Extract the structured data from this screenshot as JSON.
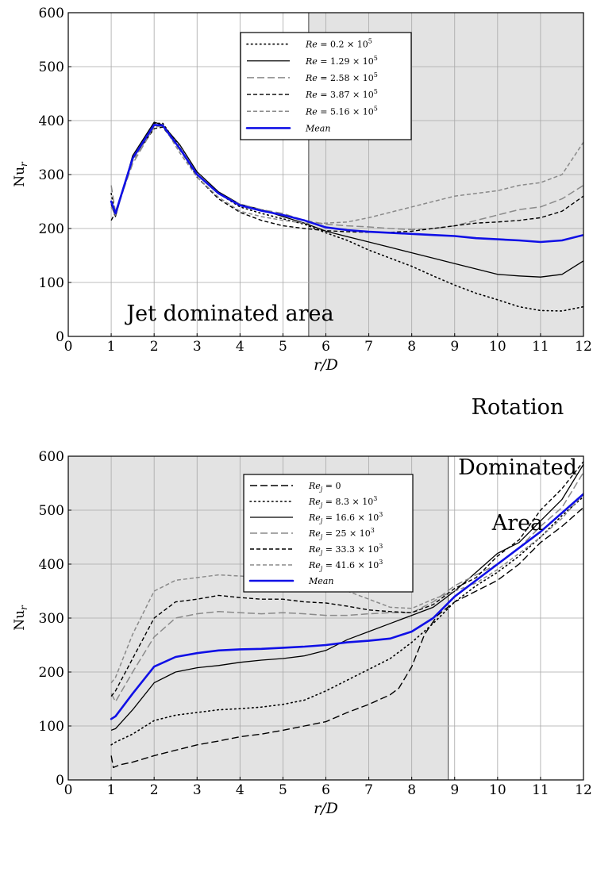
{
  "colors": {
    "shade": "#e3e3e3",
    "grid": "#a8a8a8",
    "mean": "#1010e6",
    "black": "#000000",
    "gray": "#8a8a8a"
  },
  "chart_data": [
    {
      "type": "line",
      "xlabel": "r/D",
      "ylabel": "Nu_r",
      "xlim": [
        0,
        12
      ],
      "ylim": [
        0,
        600
      ],
      "xticks": [
        "0",
        "1",
        "2",
        "3",
        "4",
        "5",
        "6",
        "7",
        "8",
        "9",
        "10",
        "11",
        "12"
      ],
      "yticks": [
        "0",
        "100",
        "200",
        "300",
        "400",
        "500",
        "600"
      ],
      "grid": true,
      "shaded_region": [
        5.6,
        12
      ],
      "annotation": "Jet dominated area",
      "legend_position": "top-center",
      "series": [
        {
          "name": "Re = 0.2 × 10^5",
          "label": "Re = 0.2 × 10",
          "sup": "5",
          "style": "dotted-black",
          "x": [
            1.0,
            1.1,
            1.5,
            2.0,
            2.2,
            2.6,
            3.0,
            3.5,
            4.0,
            4.5,
            5.0,
            5.5,
            6.0,
            6.5,
            7.0,
            7.5,
            8.0,
            8.5,
            9.0,
            9.5,
            10.0,
            10.5,
            11.0,
            11.5,
            12.0
          ],
          "y": [
            265,
            225,
            330,
            395,
            395,
            350,
            300,
            265,
            240,
            228,
            218,
            208,
            192,
            178,
            160,
            145,
            130,
            112,
            95,
            80,
            68,
            55,
            48,
            47,
            55
          ]
        },
        {
          "name": "Re = 1.29 × 10^5",
          "label": "Re = 1.29 × 10",
          "sup": "5",
          "style": "solid-black",
          "x": [
            1.0,
            1.1,
            1.5,
            2.0,
            2.2,
            2.6,
            3.0,
            3.5,
            4.0,
            4.5,
            5.0,
            5.5,
            6.0,
            6.5,
            7.0,
            7.5,
            8.0,
            8.5,
            9.0,
            9.5,
            10.0,
            10.5,
            11.0,
            11.5,
            12.0
          ],
          "y": [
            245,
            222,
            335,
            397,
            392,
            355,
            305,
            268,
            245,
            235,
            222,
            210,
            195,
            185,
            175,
            165,
            155,
            145,
            135,
            125,
            115,
            112,
            110,
            115,
            140
          ]
        },
        {
          "name": "Re = 2.58 × 10^5",
          "label": "Re = 2.58 × 10",
          "sup": "5",
          "style": "longdash-gray",
          "x": [
            1.0,
            1.1,
            1.5,
            2.0,
            2.2,
            2.6,
            3.0,
            3.5,
            4.0,
            4.5,
            5.0,
            5.5,
            6.0,
            6.5,
            7.0,
            7.5,
            8.0,
            8.5,
            9.0,
            9.5,
            10.0,
            10.5,
            11.0,
            11.5,
            12.0
          ],
          "y": [
            280,
            230,
            320,
            388,
            390,
            345,
            300,
            265,
            245,
            235,
            228,
            215,
            208,
            205,
            203,
            200,
            198,
            200,
            205,
            215,
            225,
            235,
            240,
            255,
            280
          ]
        },
        {
          "name": "Re = 3.87 × 10^5",
          "label": "Re = 3.87 × 10",
          "sup": "5",
          "style": "dashed-black",
          "x": [
            1.0,
            1.1,
            1.5,
            2.0,
            2.2,
            2.6,
            3.0,
            3.5,
            4.0,
            4.5,
            5.0,
            5.5,
            6.0,
            6.5,
            7.0,
            7.5,
            8.0,
            8.5,
            9.0,
            9.5,
            10.0,
            10.5,
            11.0,
            11.5,
            12.0
          ],
          "y": [
            215,
            230,
            330,
            385,
            388,
            348,
            295,
            255,
            230,
            215,
            205,
            200,
            196,
            194,
            193,
            193,
            195,
            200,
            205,
            210,
            212,
            215,
            220,
            232,
            260
          ]
        },
        {
          "name": "Re = 5.16 × 10^5",
          "label": "Re = 5.16 × 10",
          "sup": "5",
          "style": "dashed-gray",
          "x": [
            1.0,
            1.1,
            1.5,
            2.0,
            2.2,
            2.6,
            3.0,
            3.5,
            4.0,
            4.5,
            5.0,
            5.5,
            6.0,
            6.5,
            7.0,
            7.5,
            8.0,
            8.5,
            9.0,
            9.5,
            10.0,
            10.5,
            11.0,
            11.5,
            12.0
          ],
          "y": [
            240,
            225,
            325,
            388,
            392,
            340,
            295,
            258,
            232,
            222,
            215,
            210,
            210,
            212,
            220,
            230,
            240,
            250,
            260,
            265,
            270,
            280,
            285,
            300,
            360
          ]
        },
        {
          "name": "Mean",
          "label": "Mean",
          "sup": "",
          "style": "solid-blue",
          "x": [
            1.0,
            1.1,
            1.5,
            2.0,
            2.2,
            2.6,
            3.0,
            3.5,
            4.0,
            4.5,
            5.0,
            5.5,
            6.0,
            6.5,
            7.0,
            7.5,
            8.0,
            8.5,
            9.0,
            9.5,
            10.0,
            10.5,
            11.0,
            11.5,
            12.0
          ],
          "y": [
            250,
            228,
            330,
            392,
            391,
            348,
            300,
            265,
            243,
            233,
            225,
            215,
            202,
            197,
            194,
            192,
            190,
            188,
            186,
            182,
            180,
            178,
            175,
            178,
            188
          ]
        }
      ]
    },
    {
      "type": "line",
      "xlabel": "r/D",
      "ylabel": "Nu_r",
      "xlim": [
        0,
        12
      ],
      "ylim": [
        0,
        600
      ],
      "xticks": [
        "0",
        "1",
        "2",
        "3",
        "4",
        "5",
        "6",
        "7",
        "8",
        "9",
        "10",
        "11",
        "12"
      ],
      "yticks": [
        "0",
        "100",
        "200",
        "300",
        "400",
        "500",
        "600"
      ],
      "grid": true,
      "shaded_region": [
        0,
        8.85
      ],
      "annotation_lines": [
        "Rotation",
        "Dominated",
        "Area"
      ],
      "legend_position": "top-center",
      "series": [
        {
          "name": "Re_j = 0",
          "label": "Re_j = 0",
          "sup": "",
          "style": "longdash-black",
          "x": [
            1.0,
            1.05,
            1.2,
            1.5,
            2.0,
            2.5,
            3.0,
            3.5,
            4.0,
            4.5,
            5.0,
            5.5,
            6.0,
            6.5,
            7.0,
            7.5,
            7.7,
            8.0,
            8.3,
            8.6,
            9.0,
            9.5,
            10.0,
            10.5,
            11.0,
            11.5,
            12.0
          ],
          "y": [
            45,
            23,
            28,
            33,
            45,
            55,
            65,
            72,
            80,
            85,
            92,
            100,
            108,
            125,
            140,
            158,
            170,
            210,
            270,
            305,
            330,
            350,
            370,
            400,
            440,
            470,
            505
          ]
        },
        {
          "name": "Re_j = 8.3 × 10^3",
          "label": "Re_j = 8.3 × 10",
          "sup": "3",
          "style": "dotted-black",
          "x": [
            1.0,
            1.1,
            1.5,
            2.0,
            2.5,
            3.0,
            3.5,
            4.0,
            4.5,
            5.0,
            5.5,
            6.0,
            6.5,
            7.0,
            7.5,
            8.0,
            8.5,
            9.0,
            9.5,
            10.0,
            10.5,
            11.0,
            11.5,
            12.0
          ],
          "y": [
            65,
            70,
            85,
            110,
            120,
            125,
            130,
            132,
            135,
            140,
            148,
            165,
            185,
            205,
            225,
            255,
            290,
            330,
            360,
            385,
            415,
            450,
            490,
            525
          ]
        },
        {
          "name": "Re_j = 16.6 × 10^3",
          "label": "Re_j = 16.6 × 10",
          "sup": "3",
          "style": "solid-black",
          "x": [
            1.0,
            1.1,
            1.5,
            2.0,
            2.5,
            3.0,
            3.5,
            4.0,
            4.5,
            5.0,
            5.5,
            6.0,
            6.5,
            7.0,
            7.5,
            8.0,
            8.5,
            9.0,
            9.5,
            10.0,
            10.5,
            11.0,
            11.5,
            12.0
          ],
          "y": [
            92,
            95,
            130,
            180,
            200,
            208,
            212,
            218,
            222,
            225,
            230,
            240,
            260,
            275,
            290,
            305,
            320,
            350,
            385,
            420,
            440,
            480,
            520,
            585
          ]
        },
        {
          "name": "Re_j = 25 × 10^3",
          "label": "Re_j = 25 × 10",
          "sup": "3",
          "style": "longdash-gray",
          "x": [
            1.0,
            1.1,
            1.5,
            2.0,
            2.5,
            3.0,
            3.5,
            4.0,
            4.5,
            5.0,
            5.5,
            6.0,
            6.5,
            7.0,
            7.5,
            8.0,
            8.5,
            9.0,
            9.5,
            10.0,
            10.5,
            11.0,
            11.5,
            12.0
          ],
          "y": [
            160,
            145,
            200,
            265,
            300,
            308,
            312,
            310,
            308,
            310,
            308,
            305,
            305,
            308,
            310,
            310,
            330,
            360,
            380,
            400,
            430,
            470,
            505,
            570
          ]
        },
        {
          "name": "Re_j = 33.3 × 10^3",
          "label": "Re_j = 33.3 × 10",
          "sup": "3",
          "style": "dashed-black",
          "x": [
            1.0,
            1.1,
            1.5,
            2.0,
            2.5,
            3.0,
            3.5,
            4.0,
            4.5,
            5.0,
            5.5,
            6.0,
            6.5,
            7.0,
            7.5,
            8.0,
            8.5,
            9.0,
            9.5,
            10.0,
            10.5,
            11.0,
            11.5,
            12.0
          ],
          "y": [
            155,
            165,
            225,
            300,
            330,
            335,
            342,
            338,
            335,
            335,
            330,
            328,
            322,
            315,
            312,
            310,
            325,
            355,
            375,
            415,
            445,
            500,
            540,
            590
          ]
        },
        {
          "name": "Re_j = 41.6 × 10^3",
          "label": "Re_j = 41.6 × 10",
          "sup": "3",
          "style": "dashed-gray",
          "x": [
            1.0,
            1.1,
            1.5,
            2.0,
            2.5,
            3.0,
            3.5,
            4.0,
            4.5,
            5.0,
            5.5,
            6.0,
            6.5,
            7.0,
            7.5,
            8.0,
            8.5,
            9.0,
            9.5,
            10.0,
            10.5,
            11.0,
            11.5,
            12.0
          ],
          "y": [
            180,
            190,
            270,
            350,
            370,
            375,
            380,
            378,
            375,
            372,
            368,
            360,
            350,
            335,
            320,
            318,
            335,
            350,
            365,
            390,
            420,
            450,
            485,
            530
          ]
        },
        {
          "name": "Mean",
          "label": "Mean",
          "sup": "",
          "style": "solid-blue",
          "x": [
            1.0,
            1.1,
            1.5,
            2.0,
            2.5,
            3.0,
            3.5,
            4.0,
            4.5,
            5.0,
            5.5,
            6.0,
            6.5,
            7.0,
            7.5,
            8.0,
            8.5,
            9.0,
            9.5,
            10.0,
            10.5,
            11.0,
            11.5,
            12.0
          ],
          "y": [
            113,
            118,
            160,
            210,
            228,
            235,
            240,
            242,
            243,
            245,
            247,
            250,
            255,
            258,
            262,
            275,
            300,
            340,
            370,
            400,
            430,
            460,
            495,
            530
          ]
        }
      ]
    }
  ]
}
